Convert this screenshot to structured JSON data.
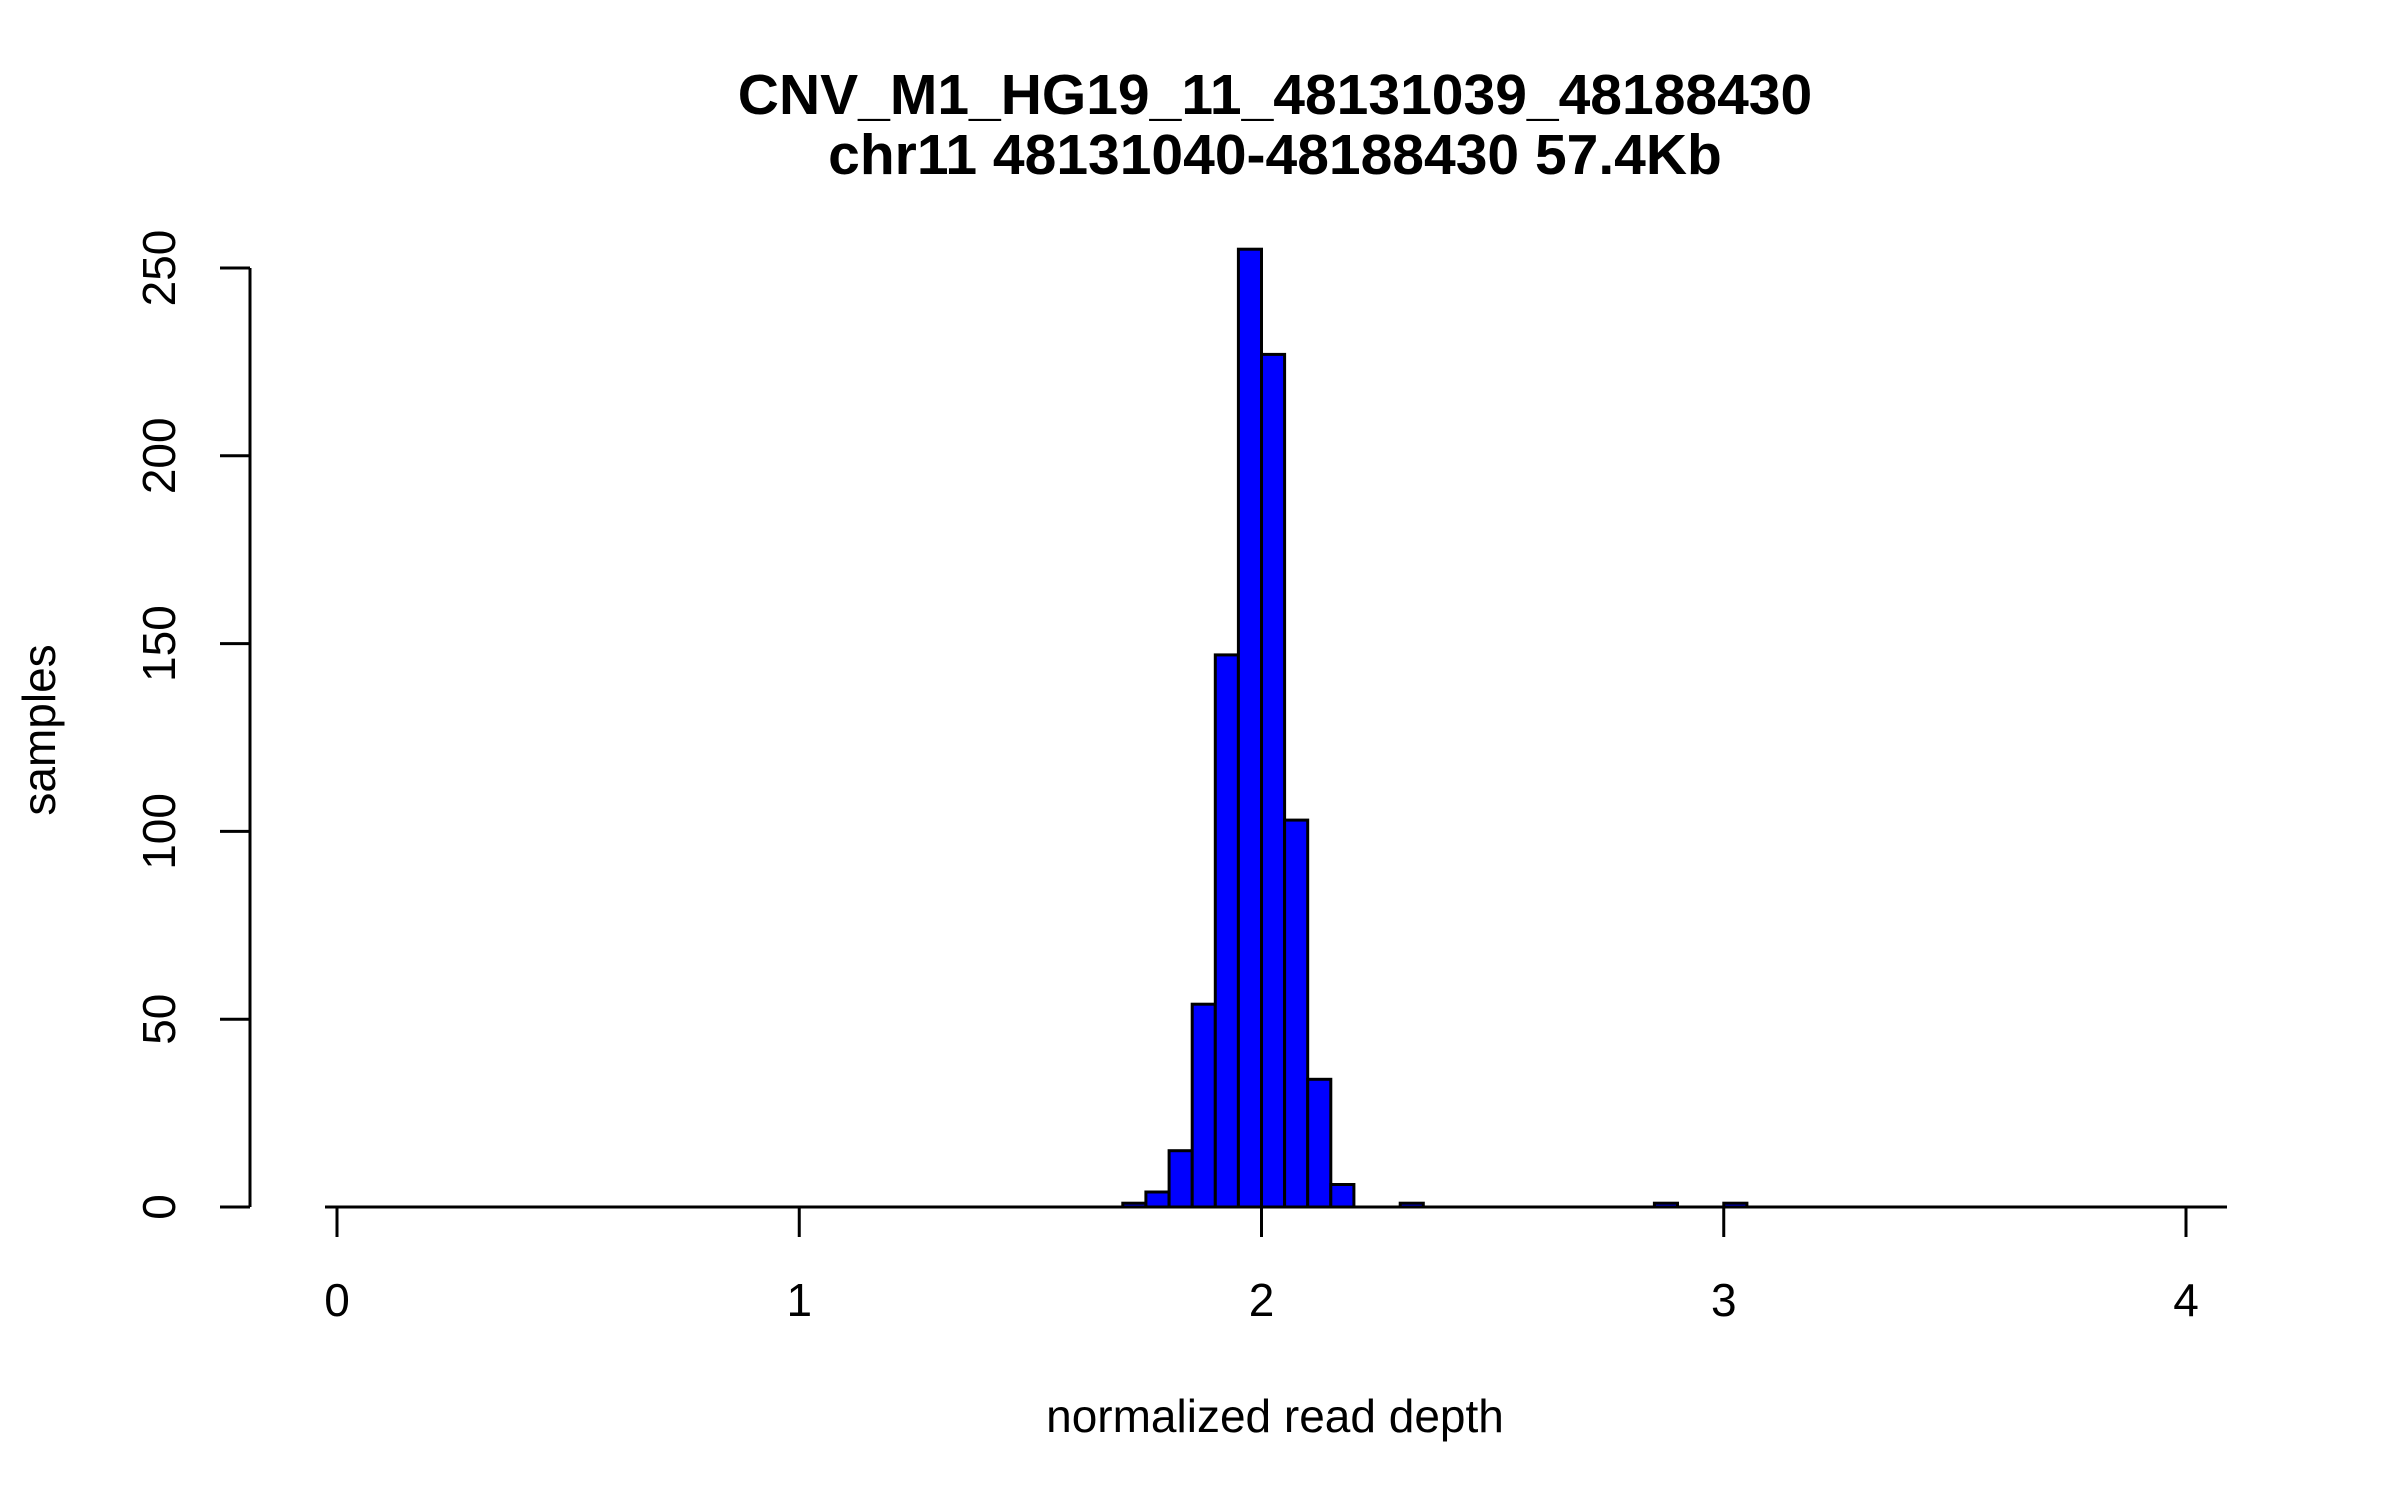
{
  "chart_data": {
    "type": "bar",
    "title": "CNV_M1_HG19_11_48131039_48188430",
    "subtitle": "chr11 48131040-48188430 57.4Kb",
    "xlabel": "normalized read depth",
    "ylabel": "samples",
    "xlim": [
      0,
      4
    ],
    "ylim": [
      0,
      250
    ],
    "x_ticks": [
      0,
      1,
      2,
      3,
      4
    ],
    "y_ticks": [
      0,
      50,
      100,
      150,
      200,
      250
    ],
    "bin_width": 0.05,
    "bar_color": "#0000ff",
    "bins": [
      {
        "start": 1.7,
        "end": 1.75,
        "count": 1
      },
      {
        "start": 1.75,
        "end": 1.8,
        "count": 4
      },
      {
        "start": 1.8,
        "end": 1.85,
        "count": 15
      },
      {
        "start": 1.85,
        "end": 1.9,
        "count": 54
      },
      {
        "start": 1.9,
        "end": 1.95,
        "count": 147
      },
      {
        "start": 1.95,
        "end": 2.0,
        "count": 255
      },
      {
        "start": 2.0,
        "end": 2.05,
        "count": 227
      },
      {
        "start": 2.05,
        "end": 2.1,
        "count": 103
      },
      {
        "start": 2.1,
        "end": 2.15,
        "count": 34
      },
      {
        "start": 2.15,
        "end": 2.2,
        "count": 6
      },
      {
        "start": 2.3,
        "end": 2.35,
        "count": 1
      },
      {
        "start": 2.85,
        "end": 2.9,
        "count": 1
      },
      {
        "start": 3.0,
        "end": 3.05,
        "count": 1
      }
    ]
  }
}
